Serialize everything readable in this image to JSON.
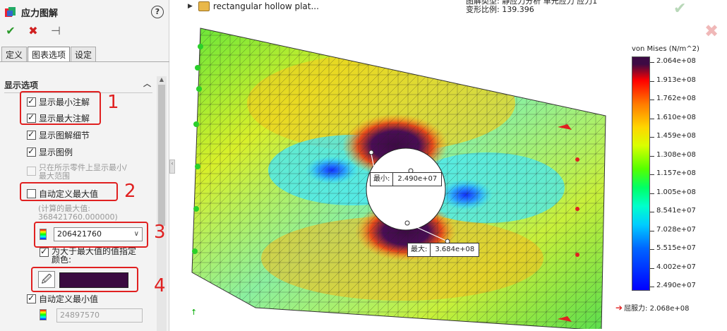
{
  "panel": {
    "title": "应力图解",
    "help": "?",
    "tabs": [
      "定义",
      "图表选项",
      "设定"
    ],
    "section_title": "显示选项",
    "options": {
      "show_min": "显示最小注解",
      "show_max": "显示最大注解",
      "show_detail": "显示图解细节",
      "show_legend": "显示图例",
      "show_range_line1": "只在所示零件上显示最小/",
      "show_range_line2": "最大范围",
      "auto_max": "自动定义最大值",
      "computed_max_line1": "(计算的最大值:",
      "computed_max_line2": "368421760.000000)",
      "max_value": "206421760",
      "over_color_line1": "为大于最大值的值指定",
      "over_color_line2": "颜色:",
      "over_color": "#3a0a40",
      "auto_min": "自动定义最小值",
      "min_value": "24897570"
    },
    "annotations": [
      "1",
      "2",
      "3",
      "4"
    ]
  },
  "viewport": {
    "model_name": "rectangular hollow plat...",
    "info_line1": "图解类型: 静应力分析 单元应力 应力1",
    "info_line2": "变形比例: 139.396",
    "legend_title": "von Mises (N/m^2)",
    "legend_labels": [
      "2.064e+08",
      "1.913e+08",
      "1.762e+08",
      "1.610e+08",
      "1.459e+08",
      "1.308e+08",
      "1.157e+08",
      "1.005e+08",
      "8.541e+07",
      "7.028e+07",
      "5.515e+07",
      "4.002e+07",
      "2.490e+07"
    ],
    "yield_label": "屈服力: 2.068e+08",
    "min_callout": {
      "key": "最小:",
      "value": "2.490e+07"
    },
    "max_callout": {
      "key": "最大:",
      "value": "3.684e+08"
    }
  }
}
